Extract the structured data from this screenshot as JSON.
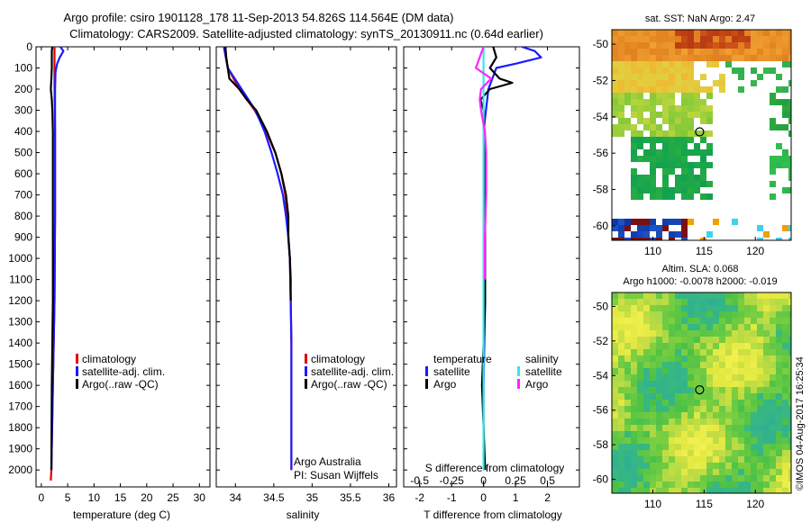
{
  "title": {
    "line1": "Argo profile: csiro 1901128_178 11-Sep-2013 54.826S 114.564E (DM data)",
    "line2": "Climatology: CARS2009. Satellite-adjusted climatology: synTS_20130911.nc (0.64d earlier)"
  },
  "footer": {
    "org": "Argo Australia",
    "pi": "PI: Susan Wijffels",
    "stamp": "©IMOS 04-Aug-2017 16:25:34"
  },
  "colors": {
    "climatology": "#e00000",
    "satellite": "#1a1aff",
    "argo": "#000000",
    "sal_satellite": "#33e8e8",
    "sal_argo": "#ff22ff"
  },
  "chart_data": [
    {
      "id": "temperature",
      "type": "line",
      "xlabel": "temperature (deg C)",
      "ylabel": "",
      "xlim": [
        -1,
        32
      ],
      "ylim": [
        2080,
        0
      ],
      "y_reversed": true,
      "xticks": [
        "0",
        "5",
        "10",
        "15",
        "20",
        "25",
        "30"
      ],
      "yticks": [
        "0",
        "100",
        "200",
        "300",
        "400",
        "500",
        "600",
        "700",
        "800",
        "900",
        "1000",
        "1100",
        "1200",
        "1300",
        "1400",
        "1500",
        "1600",
        "1700",
        "1800",
        "1900",
        "2000"
      ],
      "legend": [
        "climatology",
        "satellite-adj. clim.",
        "Argo(..raw -QC)"
      ],
      "series": [
        {
          "name": "climatology",
          "key": "climatology",
          "depth": [
            0,
            100,
            200,
            400,
            800,
            1200,
            1600,
            2000,
            2050
          ],
          "values": [
            2.5,
            2.5,
            2.5,
            2.6,
            2.6,
            2.5,
            2.2,
            1.9,
            1.8
          ]
        },
        {
          "name": "satellite-adj. clim.",
          "key": "satellite",
          "depth": [
            0,
            20,
            50,
            80,
            120,
            200,
            400,
            800,
            1200,
            1600,
            2000
          ],
          "values": [
            3.6,
            4.2,
            3.5,
            3.0,
            2.7,
            2.6,
            2.6,
            2.6,
            2.5,
            2.2,
            1.9
          ]
        },
        {
          "name": "Argo(..raw -QC)",
          "key": "argo",
          "depth": [
            0,
            20,
            50,
            100,
            150,
            200,
            250,
            300,
            400,
            800,
            1200,
            1600,
            2000
          ],
          "values": [
            2.1,
            2.0,
            2.0,
            2.0,
            1.9,
            1.8,
            2.0,
            2.1,
            2.2,
            2.2,
            2.2,
            2.0,
            1.9
          ]
        }
      ]
    },
    {
      "id": "salinity",
      "type": "line",
      "xlabel": "salinity",
      "xlim": [
        33.75,
        36.1
      ],
      "ylim": [
        2080,
        0
      ],
      "y_reversed": true,
      "xticks": [
        "34",
        "34.5",
        "35",
        "35.5",
        "36"
      ],
      "legend": [
        "climatology",
        "satellite-adj. clim.",
        "Argo(..raw -QC)"
      ],
      "series": [
        {
          "name": "climatology",
          "key": "climatology",
          "depth": [
            0,
            100,
            200,
            300,
            400,
            500,
            600,
            700,
            800,
            900,
            1000,
            1200,
            1400,
            2000
          ],
          "values": [
            33.85,
            33.9,
            34.05,
            34.25,
            34.4,
            34.52,
            34.6,
            34.65,
            34.68,
            34.69,
            34.71,
            34.72,
            34.73,
            34.73
          ]
        },
        {
          "name": "satellite-adj. clim.",
          "key": "satellite",
          "depth": [
            0,
            100,
            200,
            300,
            400,
            500,
            600,
            700,
            800,
            900,
            1000,
            1200,
            1400,
            2000
          ],
          "values": [
            33.85,
            33.9,
            34.08,
            34.26,
            34.38,
            34.47,
            34.55,
            34.62,
            34.66,
            34.69,
            34.71,
            34.72,
            34.73,
            34.73
          ]
        },
        {
          "name": "Argo(..raw -QC)",
          "key": "argo",
          "depth": [
            0,
            50,
            150,
            200,
            250,
            300,
            400,
            500,
            600,
            700,
            800,
            900,
            1000,
            1100,
            1200
          ],
          "values": [
            33.87,
            33.88,
            33.92,
            34.05,
            34.15,
            34.27,
            34.41,
            34.52,
            34.6,
            34.66,
            34.69,
            34.69,
            34.71,
            34.72,
            34.72
          ]
        }
      ]
    },
    {
      "id": "difference",
      "type": "line",
      "xlabel": "T difference from climatology",
      "xlabel_top": "S difference from climatology",
      "xlim": [
        -2.5,
        3.0
      ],
      "ylim": [
        2080,
        0
      ],
      "y_reversed": true,
      "xticks": [
        "-2",
        "-1",
        "0",
        "1",
        "2"
      ],
      "xticks_top": [
        "-0.5",
        "-0.25",
        "0",
        "0.25",
        "0.5"
      ],
      "legend_headers": [
        "temperature",
        "salinity"
      ],
      "legend": [
        "satellite",
        "Argo",
        "satellite",
        "Argo"
      ],
      "series": [
        {
          "name": "satellite",
          "group": "temperature",
          "key": "satellite",
          "depth": [
            0,
            20,
            50,
            80,
            100,
            200,
            400,
            800,
            1200,
            1600,
            2000
          ],
          "values": [
            1.2,
            1.6,
            1.8,
            1.0,
            0.4,
            0.15,
            0.0,
            0.0,
            0.05,
            0.0,
            0.0
          ]
        },
        {
          "name": "Argo",
          "group": "temperature",
          "key": "argo",
          "depth": [
            0,
            50,
            100,
            150,
            170,
            200,
            250,
            300,
            500,
            800,
            1200,
            1600,
            2000
          ],
          "values": [
            0.3,
            0.4,
            0.2,
            0.5,
            0.9,
            0.2,
            -0.1,
            0.0,
            0.05,
            0.05,
            0.05,
            -0.05,
            0.05
          ]
        },
        {
          "name": "satellite",
          "group": "salinity",
          "key": "sal_satellite",
          "depth": [
            0,
            100,
            200,
            300,
            500,
            800,
            1200,
            1600,
            2000
          ],
          "values": [
            0.0,
            0.0,
            0.0,
            0.0,
            0.0,
            0.0,
            0.0,
            0.0,
            0.0
          ]
        },
        {
          "name": "Argo",
          "group": "salinity",
          "key": "sal_argo",
          "depth": [
            0,
            100,
            150,
            200,
            250,
            300,
            400,
            500,
            700,
            900,
            1100
          ],
          "values": [
            0.0,
            -0.06,
            0.06,
            -0.02,
            -0.03,
            -0.02,
            0.01,
            0.02,
            0.02,
            0.01,
            0.01
          ]
        }
      ]
    },
    {
      "id": "sst_map",
      "type": "heatmap",
      "title": "sat. SST: NaN Argo: 2.47",
      "xlim": [
        106,
        123.5
      ],
      "ylim": [
        -60.8,
        -49.2
      ],
      "xticks": [
        "110",
        "115",
        "120"
      ],
      "yticks": [
        "-50",
        "-52",
        "-54",
        "-56",
        "-58",
        "-60"
      ],
      "marker": {
        "lon": 114.564,
        "lat": -54.826
      }
    },
    {
      "id": "sla_map",
      "type": "heatmap",
      "title": "Altim. SLA: 0.068",
      "subtitle": "Argo h1000: -0.0078 h2000: -0.019",
      "xlim": [
        106,
        123.5
      ],
      "ylim": [
        -60.8,
        -49.2
      ],
      "xticks": [
        "110",
        "115",
        "120"
      ],
      "yticks": [
        "-50",
        "-52",
        "-54",
        "-56",
        "-58",
        "-60"
      ],
      "marker": {
        "lon": 114.564,
        "lat": -54.826
      }
    }
  ]
}
